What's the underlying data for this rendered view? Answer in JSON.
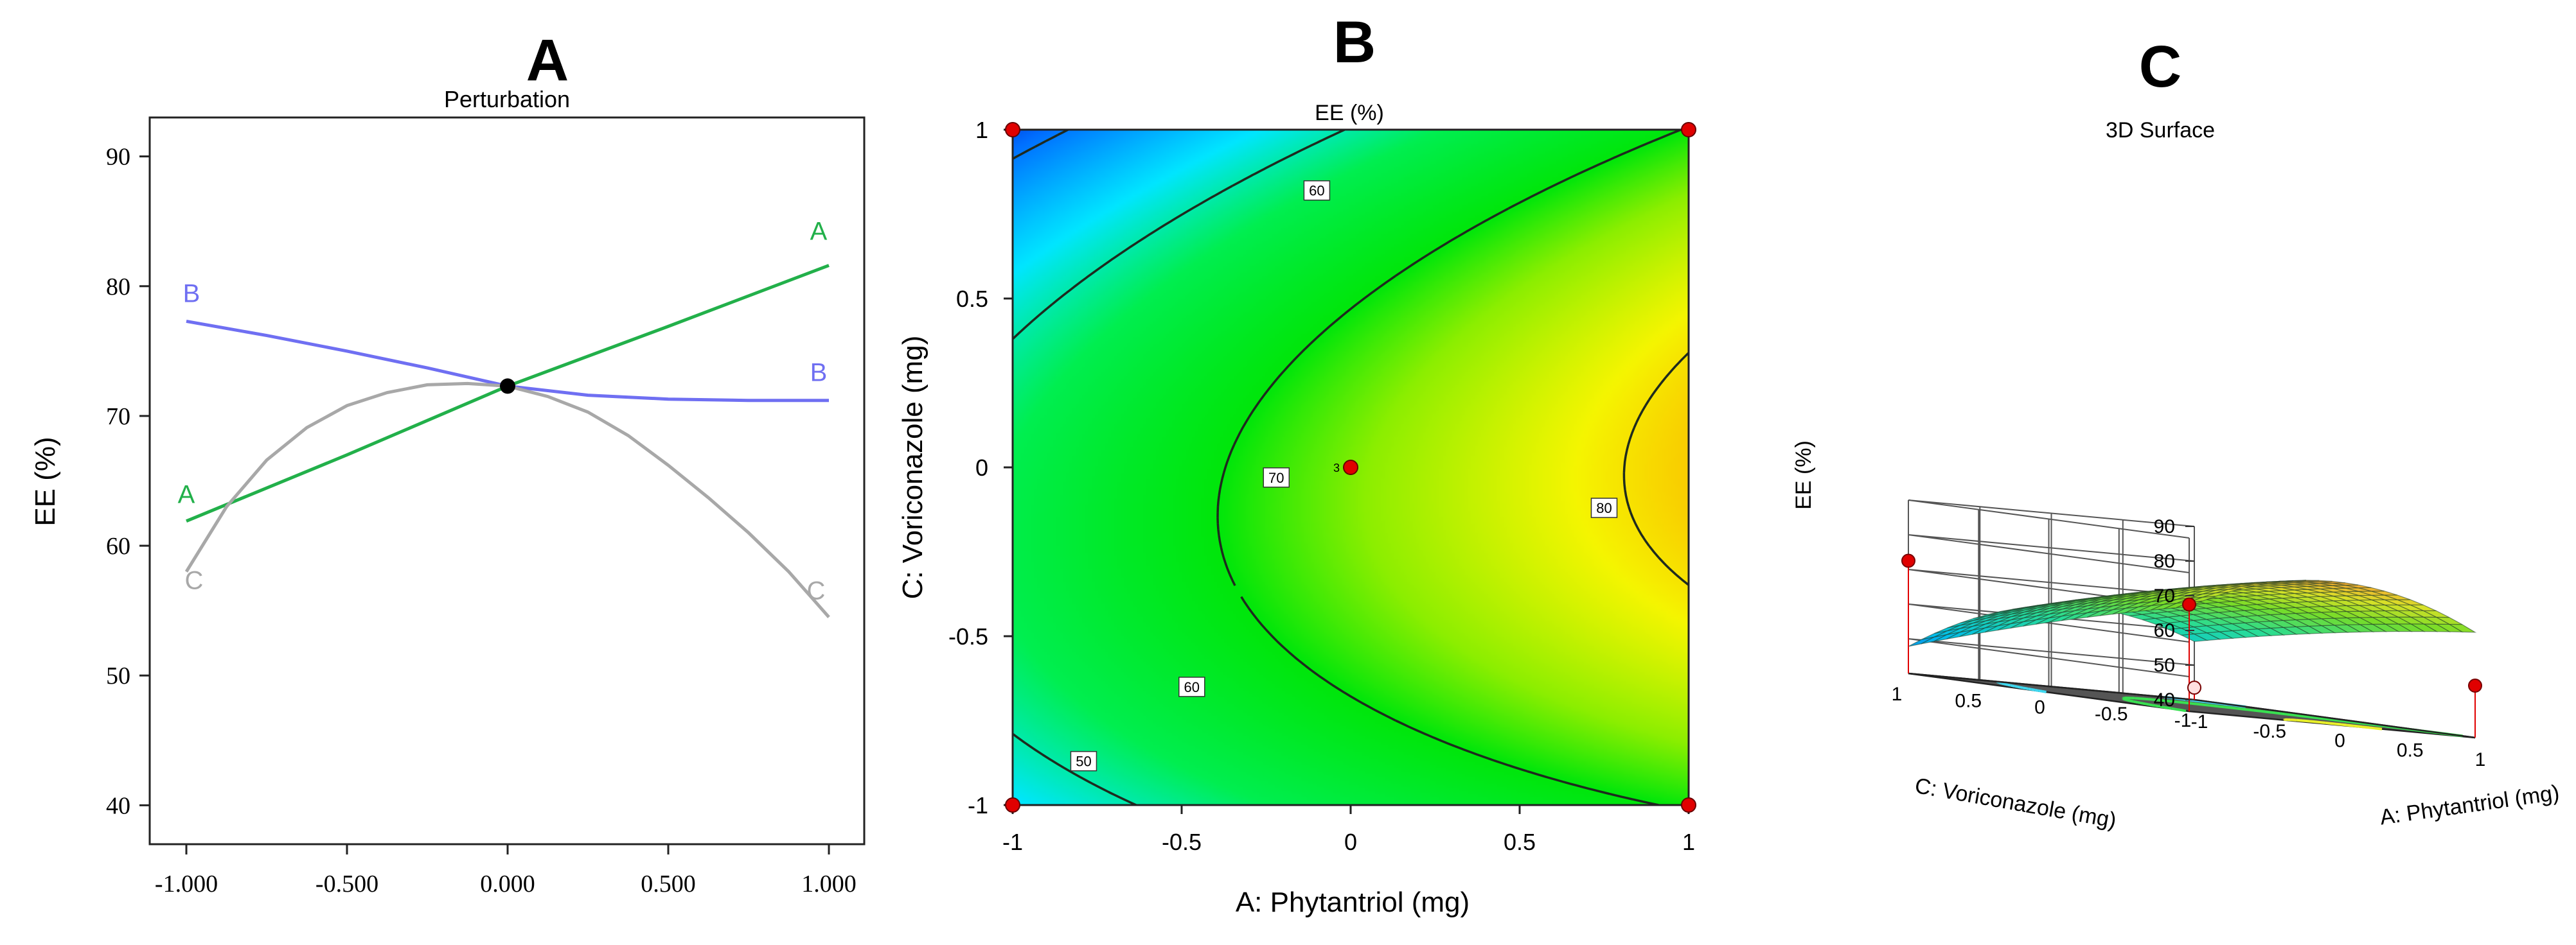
{
  "panels": {
    "a": {
      "letter": "A",
      "title": "Perturbation"
    },
    "b": {
      "letter": "B",
      "title": "EE (%)"
    },
    "c": {
      "letter": "C",
      "title": "3D Surface"
    }
  },
  "chart_data": [
    {
      "type": "line",
      "panel": "A",
      "title": "Perturbation",
      "xlabel": "",
      "ylabel": "EE (%)",
      "xlim": [
        -1,
        1
      ],
      "ylim": [
        37,
        93
      ],
      "x_ticks": [
        -1,
        -0.5,
        0,
        0.5,
        1
      ],
      "x_tick_labels": [
        "-1.000",
        "-0.500",
        "0.000",
        "0.500",
        "1.000"
      ],
      "y_ticks": [
        40,
        50,
        60,
        70,
        80,
        90
      ],
      "y_tick_labels": [
        "40",
        "50",
        "60",
        "70",
        "80",
        "90"
      ],
      "center_point": {
        "x": 0,
        "y": 72.3
      },
      "series": [
        {
          "name": "A",
          "color": "#22b04a",
          "start_label": "A",
          "end_label": "A",
          "x": [
            -1,
            -0.5,
            0,
            0.5,
            1
          ],
          "y": [
            61.9,
            67.0,
            72.3,
            76.9,
            81.6
          ]
        },
        {
          "name": "B",
          "color": "#6f6ff2",
          "start_label": "B",
          "end_label": "B",
          "x": [
            -1,
            -0.75,
            -0.5,
            -0.25,
            0,
            0.25,
            0.5,
            0.75,
            1
          ],
          "y": [
            77.3,
            76.2,
            75.0,
            73.7,
            72.3,
            71.6,
            71.3,
            71.2,
            71.2
          ]
        },
        {
          "name": "C",
          "color": "#a8a8a8",
          "start_label": "C",
          "end_label": "C",
          "x": [
            -1,
            -0.875,
            -0.75,
            -0.625,
            -0.5,
            -0.375,
            -0.25,
            -0.125,
            0,
            0.125,
            0.25,
            0.375,
            0.5,
            0.625,
            0.75,
            0.875,
            1
          ],
          "y": [
            58.0,
            63.0,
            66.6,
            69.1,
            70.8,
            71.8,
            72.4,
            72.5,
            72.3,
            71.5,
            70.3,
            68.5,
            66.2,
            63.7,
            61.0,
            58.0,
            54.5
          ]
        }
      ]
    },
    {
      "type": "heatmap",
      "panel": "B",
      "title": "EE (%)",
      "xlabel": "A: Phytantriol (mg)",
      "ylabel": "C: Voriconazole (mg)",
      "xlim": [
        -1,
        1
      ],
      "ylim": [
        -1,
        1
      ],
      "x_ticks": [
        -1,
        -0.5,
        0,
        0.5,
        1
      ],
      "x_tick_labels": [
        "-1",
        "-0.5",
        "0",
        "0.5",
        "1"
      ],
      "y_ticks": [
        -1,
        -0.5,
        0,
        0.5,
        1
      ],
      "y_tick_labels": [
        "-1",
        "-0.5",
        "0",
        "0.5",
        "1"
      ],
      "contour_levels": [
        50,
        60,
        70,
        80
      ],
      "contour_labels": [
        {
          "text": "60",
          "x": -0.1,
          "y": 0.82
        },
        {
          "text": "70",
          "x": -0.22,
          "y": -0.03
        },
        {
          "text": "80",
          "x": 0.75,
          "y": -0.12
        },
        {
          "text": "60",
          "x": -0.47,
          "y": -0.65
        },
        {
          "text": "50",
          "x": -0.79,
          "y": -0.87
        }
      ],
      "design_points": [
        {
          "x": -1,
          "y": 1
        },
        {
          "x": 1,
          "y": 1
        },
        {
          "x": -1,
          "y": -1
        },
        {
          "x": 1,
          "y": -1
        },
        {
          "x": 0,
          "y": 0,
          "label": "3"
        }
      ]
    },
    {
      "type": "surface",
      "panel": "C",
      "title": "3D Surface",
      "xlabel": "A: Phytantriol (mg)",
      "ylabel": "C: Voriconazole (mg)",
      "zlabel": "EE (%)",
      "x_ticks": [
        -1,
        -0.5,
        0,
        0.5,
        1
      ],
      "x_tick_labels": [
        "-1",
        "-0.5",
        "0",
        "0.5",
        "1"
      ],
      "y_ticks": [
        -1,
        -0.5,
        0,
        0.5,
        1
      ],
      "y_tick_labels": [
        "-1",
        "-0.5",
        "0",
        "0.5",
        "1"
      ],
      "z_ticks": [
        40,
        50,
        60,
        70,
        80,
        90
      ],
      "z_tick_labels": [
        "40",
        "50",
        "60",
        "70",
        "80",
        "90"
      ],
      "zlim": [
        40,
        90
      ],
      "design_points": [
        {
          "x": -1,
          "y": 1,
          "z": 72.5
        },
        {
          "x": 1,
          "y": 1,
          "z": 70.8
        },
        {
          "x": -1,
          "y": -1,
          "z": 43.5
        },
        {
          "x": 1,
          "y": -1,
          "z": 55
        }
      ]
    }
  ]
}
